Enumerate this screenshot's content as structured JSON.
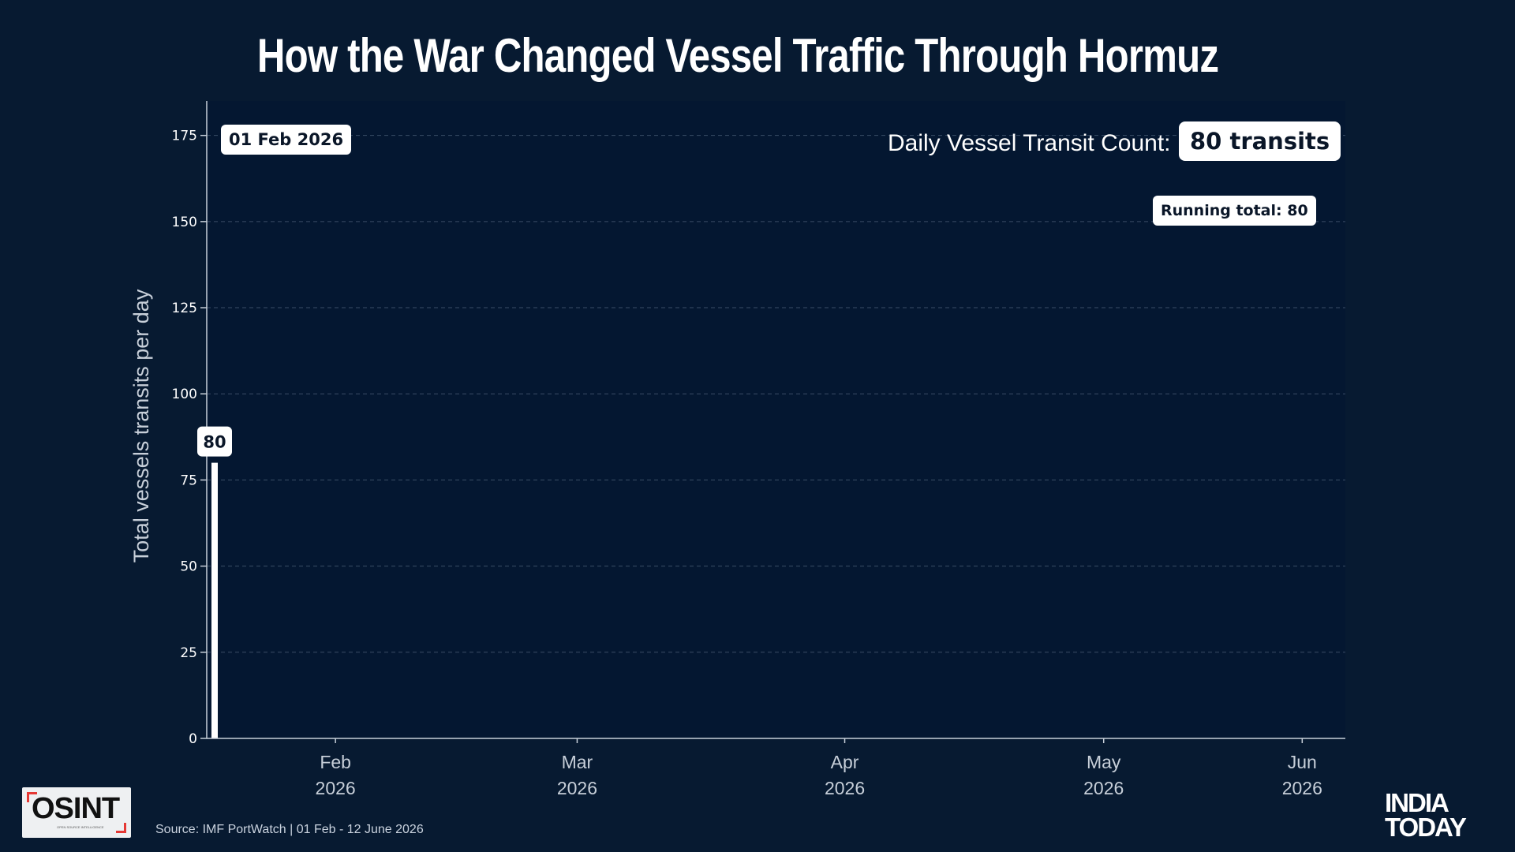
{
  "title": "How the War Changed Vessel Traffic Through Hormuz",
  "current_date": "01 Feb 2026",
  "daily_count_label": "Daily Vessel Transit Count:",
  "daily_count_value": "80 transits",
  "running_total": "Running total: 80",
  "source": "Source: IMF PortWatch | 01 Feb - 12 June 2026",
  "logos": {
    "osint": "OSINT",
    "osint_sub": "OPEN SOURCE INTELLIGENCE",
    "brand_line1": "INDIA",
    "brand_line2": "TODAY"
  },
  "colors": {
    "background": "#071a31",
    "plot_background": "#041731",
    "bar": "#ffffff",
    "grid": "#3a4d66",
    "axis_text": "#ffffff",
    "accent_red": "#e53935"
  },
  "chart_data": {
    "type": "bar",
    "ylabel": "Total vessels transits per day",
    "xlabel": "",
    "ylim": [
      0,
      185
    ],
    "xlim": [
      "2026-02-01",
      "2026-06-12"
    ],
    "y_ticks": [
      0,
      25,
      50,
      75,
      100,
      125,
      150,
      175
    ],
    "x_ticks": [
      {
        "month": "Feb",
        "year": "2026",
        "date": "2026-02-15"
      },
      {
        "month": "Mar",
        "year": "2026",
        "date": "2026-03-15"
      },
      {
        "month": "Apr",
        "year": "2026",
        "date": "2026-04-15"
      },
      {
        "month": "May",
        "year": "2026",
        "date": "2026-05-15"
      },
      {
        "month": "Jun",
        "year": "2026",
        "date": "2026-06-07"
      }
    ],
    "grid": true,
    "series": [
      {
        "x": [
          "2026-02-01"
        ],
        "values": [
          80
        ],
        "data_labels": [
          "80"
        ]
      }
    ]
  }
}
